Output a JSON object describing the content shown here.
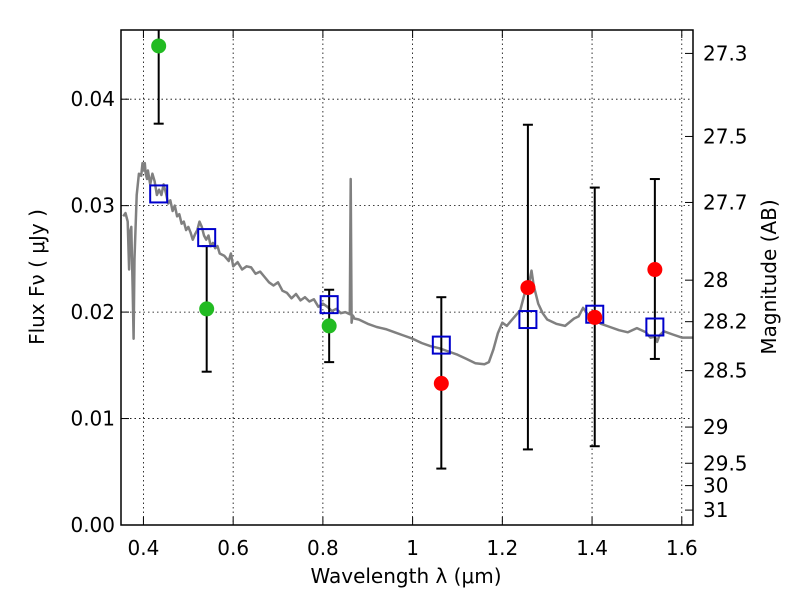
{
  "chart_data": {
    "type": "scatter",
    "xlabel": "Wavelength  λ (μm)",
    "ylabel": "Flux  Fν  ( μJy )",
    "ylabel_right": "Magnitude (AB)",
    "xlim": [
      0.35,
      1.625
    ],
    "ylim": [
      0.0,
      0.0465
    ],
    "grid": true,
    "x_ticks": [
      0.4,
      0.6,
      0.8,
      1.0,
      1.2,
      1.4,
      1.6
    ],
    "x_tick_labels": [
      "0.4",
      "0.6",
      "0.8",
      "1",
      "1.2",
      "1.4",
      "1.6"
    ],
    "y_ticks": [
      0.0,
      0.01,
      0.02,
      0.03,
      0.04
    ],
    "y_tick_labels": [
      "0.00",
      "0.01",
      "0.02",
      "0.03",
      "0.04"
    ],
    "mag_ticks": [
      {
        "label": "27.3",
        "flux": 0.0443
      },
      {
        "label": "27.5",
        "flux": 0.0365
      },
      {
        "label": "27.7",
        "flux": 0.0303
      },
      {
        "label": "28",
        "flux": 0.023
      },
      {
        "label": "28.2",
        "flux": 0.0191
      },
      {
        "label": "28.5",
        "flux": 0.0145
      },
      {
        "label": "29",
        "flux": 0.0092
      },
      {
        "label": "29.5",
        "flux": 0.0058
      },
      {
        "label": "30",
        "flux": 0.0037
      },
      {
        "label": "31",
        "flux": 0.0014
      }
    ],
    "colors": {
      "model_line": "#808080",
      "model_points": "#0000cc",
      "green_points": "#22bb22",
      "red_points": "#ff0000",
      "errorbars": "#000000"
    },
    "series": [
      {
        "marker": "line",
        "x": [
          0.355,
          0.36,
          0.365,
          0.368,
          0.37,
          0.373,
          0.376,
          0.378,
          0.38,
          0.385,
          0.39,
          0.395,
          0.398,
          0.4,
          0.403,
          0.405,
          0.408,
          0.41,
          0.415,
          0.42,
          0.425,
          0.43,
          0.435,
          0.44,
          0.445,
          0.45,
          0.455,
          0.46,
          0.465,
          0.47,
          0.475,
          0.48,
          0.485,
          0.49,
          0.495,
          0.5,
          0.505,
          0.51,
          0.515,
          0.52,
          0.525,
          0.53,
          0.535,
          0.54,
          0.545,
          0.55,
          0.555,
          0.56,
          0.565,
          0.57,
          0.58,
          0.59,
          0.595,
          0.6,
          0.61,
          0.62,
          0.63,
          0.64,
          0.65,
          0.66,
          0.67,
          0.68,
          0.69,
          0.7,
          0.71,
          0.72,
          0.73,
          0.74,
          0.75,
          0.76,
          0.77,
          0.78,
          0.79,
          0.8,
          0.81,
          0.82,
          0.83,
          0.84,
          0.85,
          0.86,
          0.862,
          0.864,
          0.866,
          0.868,
          0.87,
          0.88,
          0.9,
          0.92,
          0.94,
          0.96,
          0.98,
          1.0,
          1.02,
          1.04,
          1.06,
          1.08,
          1.1,
          1.12,
          1.14,
          1.16,
          1.17,
          1.18,
          1.19,
          1.2,
          1.21,
          1.22,
          1.23,
          1.24,
          1.25,
          1.26,
          1.265,
          1.27,
          1.28,
          1.29,
          1.3,
          1.32,
          1.34,
          1.36,
          1.37,
          1.38,
          1.39,
          1.4,
          1.42,
          1.44,
          1.46,
          1.48,
          1.5,
          1.52,
          1.53,
          1.54,
          1.545,
          1.55,
          1.56,
          1.58,
          1.6,
          1.625
        ],
        "y": [
          0.029,
          0.0293,
          0.0285,
          0.024,
          0.0275,
          0.028,
          0.022,
          0.0175,
          0.025,
          0.031,
          0.033,
          0.0328,
          0.034,
          0.0333,
          0.034,
          0.033,
          0.0325,
          0.0333,
          0.032,
          0.033,
          0.0323,
          0.031,
          0.0315,
          0.031,
          0.032,
          0.0312,
          0.0302,
          0.0305,
          0.0295,
          0.03,
          0.029,
          0.0292,
          0.0283,
          0.0285,
          0.0277,
          0.028,
          0.0275,
          0.0268,
          0.0273,
          0.0277,
          0.0285,
          0.028,
          0.0272,
          0.0268,
          0.0272,
          0.0262,
          0.0265,
          0.026,
          0.0262,
          0.0255,
          0.0253,
          0.0248,
          0.0255,
          0.0243,
          0.0247,
          0.024,
          0.0243,
          0.0242,
          0.0236,
          0.0238,
          0.0233,
          0.0228,
          0.0225,
          0.0228,
          0.022,
          0.0218,
          0.0213,
          0.0217,
          0.0211,
          0.0214,
          0.021,
          0.0212,
          0.0205,
          0.0208,
          0.0205,
          0.0201,
          0.0203,
          0.0199,
          0.02,
          0.0198,
          0.0325,
          0.019,
          0.0197,
          0.0196,
          0.0194,
          0.0193,
          0.0189,
          0.0186,
          0.0184,
          0.0181,
          0.0178,
          0.0175,
          0.0171,
          0.0168,
          0.0166,
          0.0163,
          0.016,
          0.0156,
          0.0152,
          0.0151,
          0.0153,
          0.0165,
          0.018,
          0.019,
          0.0187,
          0.0192,
          0.0197,
          0.0202,
          0.0218,
          0.0228,
          0.0239,
          0.0225,
          0.0208,
          0.0199,
          0.0193,
          0.0189,
          0.0187,
          0.0194,
          0.0196,
          0.0204,
          0.0198,
          0.0195,
          0.0189,
          0.0186,
          0.0183,
          0.0181,
          0.0185,
          0.0181,
          0.0176,
          0.0177,
          0.0172,
          0.0178,
          0.0182,
          0.0179,
          0.0176,
          0.0176
        ]
      },
      {
        "marker": "square",
        "x": [
          0.434,
          0.541,
          0.814,
          1.064,
          1.257,
          1.406,
          1.54
        ],
        "y": [
          0.0311,
          0.027,
          0.0207,
          0.0169,
          0.0193,
          0.0198,
          0.0186
        ]
      },
      {
        "marker": "circle",
        "x": [
          0.434,
          0.541,
          0.814
        ],
        "y": [
          0.045,
          0.0203,
          0.0187
        ],
        "yerr_low": [
          0.0377,
          0.0144,
          0.0153
        ],
        "yerr_high": [
          0.0473,
          0.0262,
          0.0221
        ]
      },
      {
        "marker": "circle",
        "x": [
          1.064,
          1.257,
          1.406,
          1.54
        ],
        "y": [
          0.0133,
          0.0223,
          0.0195,
          0.024
        ],
        "yerr_low": [
          0.0053,
          0.0071,
          0.0074,
          0.0156
        ],
        "yerr_high": [
          0.0214,
          0.0376,
          0.0317,
          0.0325
        ]
      }
    ]
  }
}
